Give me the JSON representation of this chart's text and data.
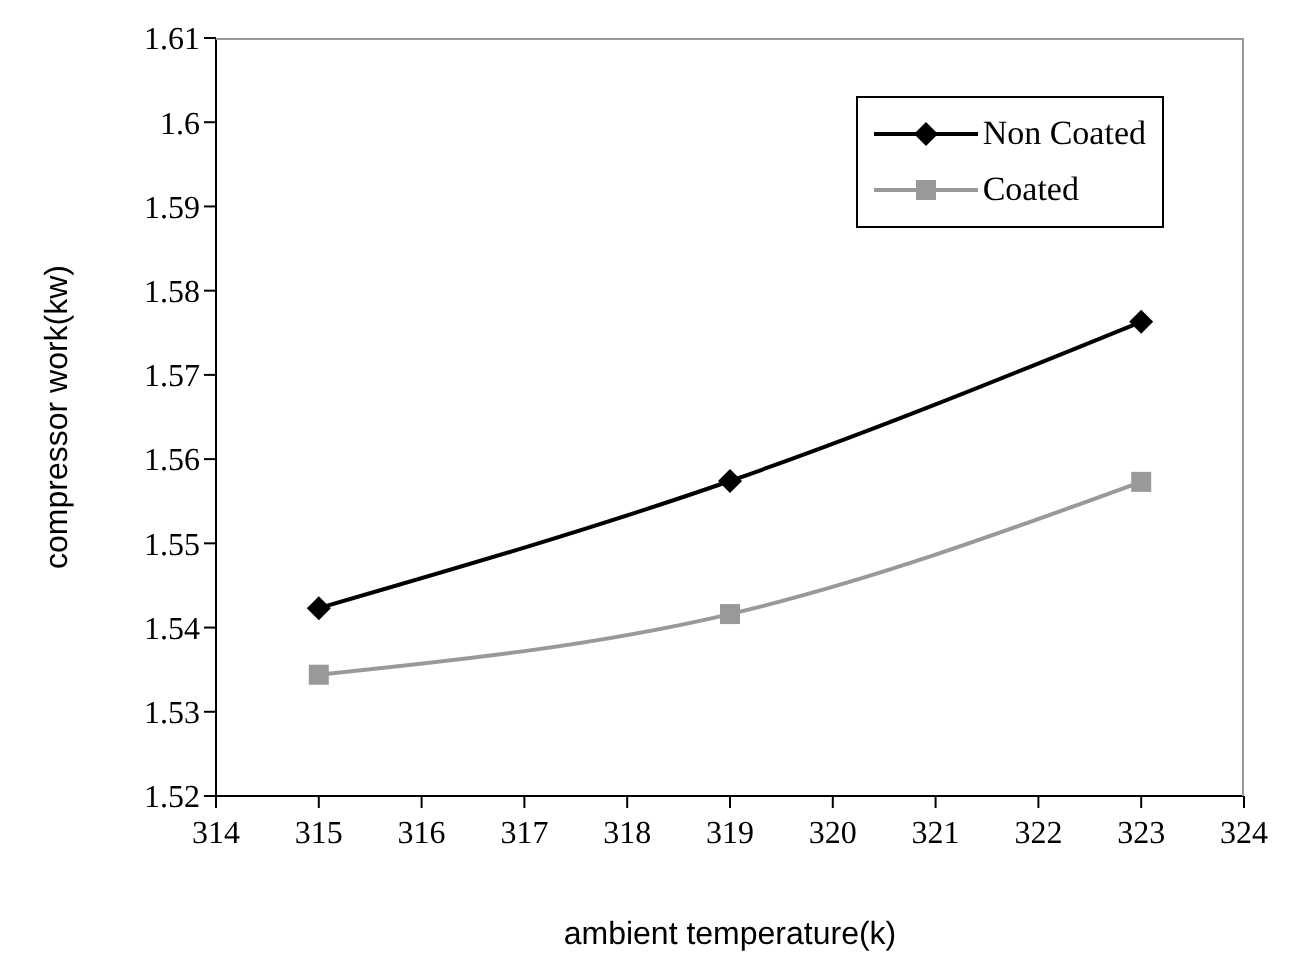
{
  "chart_data": {
    "type": "line",
    "xlabel": "ambient temperature(k)",
    "ylabel": "compressor work(kw)",
    "x": [
      315,
      319,
      323
    ],
    "series": [
      {
        "name": "Non Coated",
        "color": "#000000",
        "marker": "diamond",
        "values": [
          1.5423,
          1.5574,
          1.5763
        ]
      },
      {
        "name": "Coated",
        "color": "#999999",
        "marker": "square",
        "values": [
          1.5344,
          1.5416,
          1.5573
        ]
      }
    ],
    "xlim": [
      314,
      324
    ],
    "xticks": [
      314,
      315,
      316,
      317,
      318,
      319,
      320,
      321,
      322,
      323,
      324
    ],
    "ylim": [
      1.52,
      1.61
    ],
    "yticks": [
      1.52,
      1.53,
      1.54,
      1.55,
      1.56,
      1.57,
      1.58,
      1.59,
      1.6,
      1.61
    ],
    "grid": false,
    "legend": "top right",
    "line_style": "solid"
  }
}
